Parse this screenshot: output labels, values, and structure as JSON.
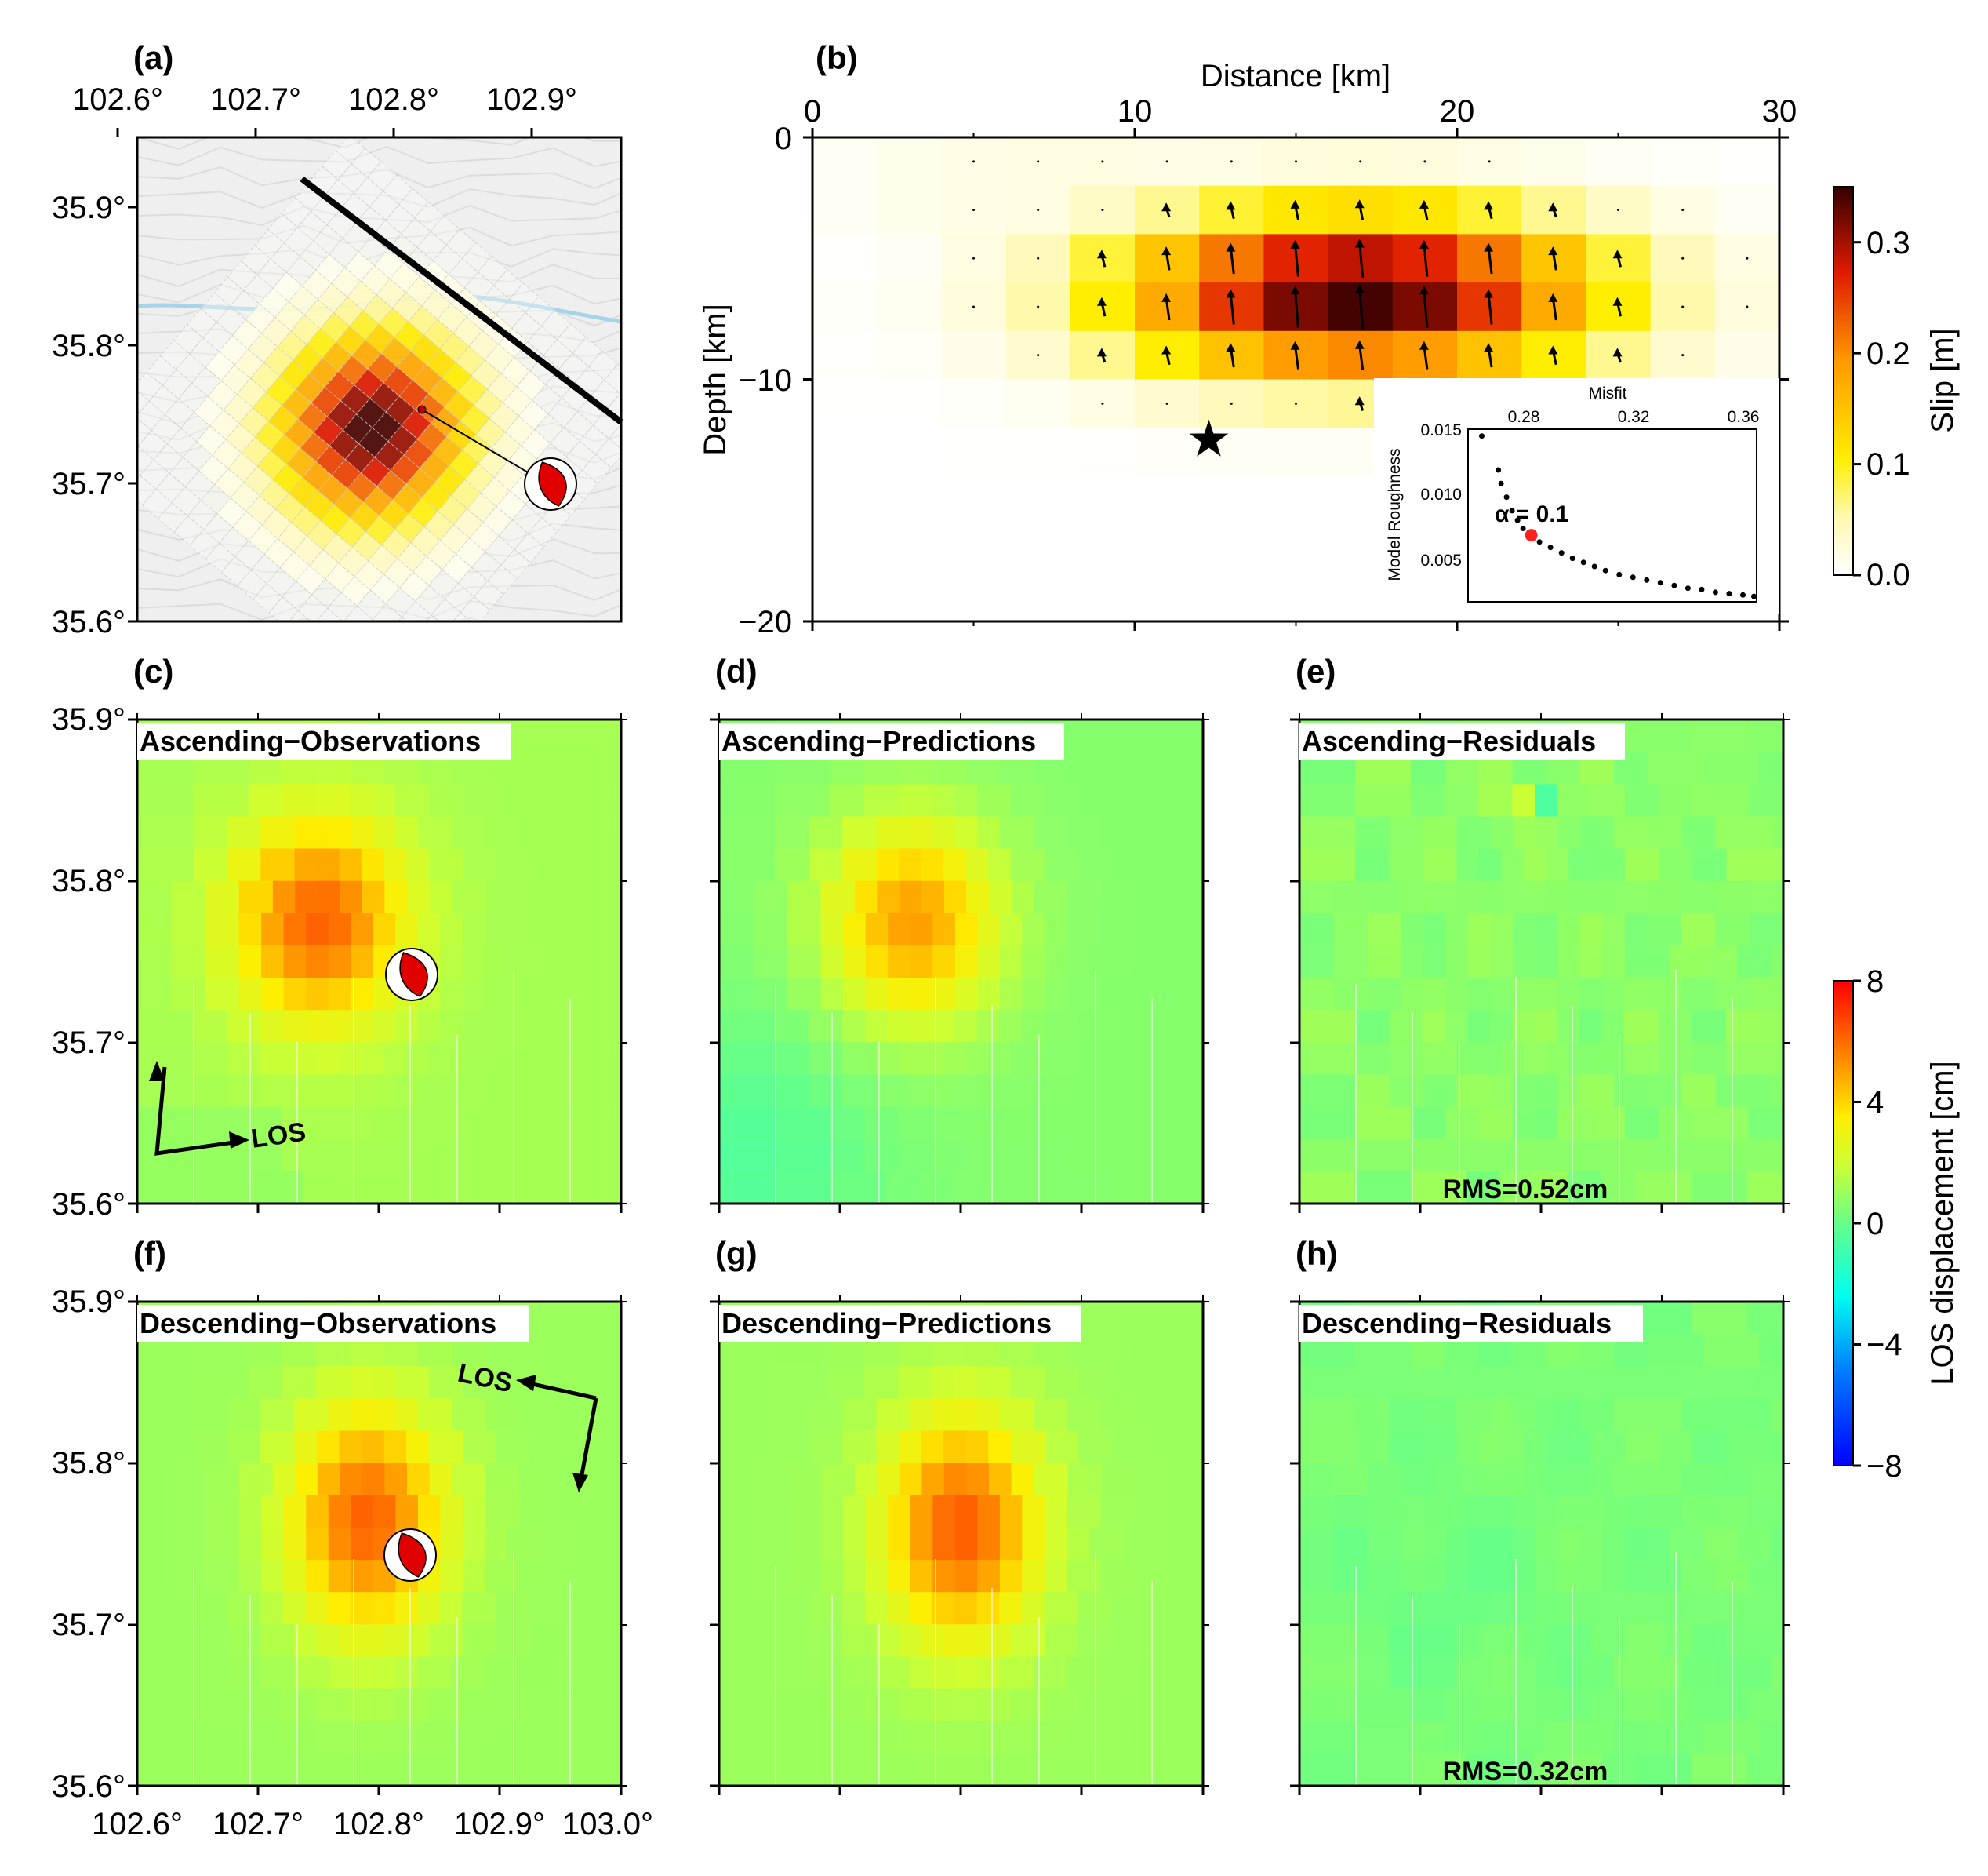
{
  "panel_labels": {
    "a": "(a)",
    "b": "(b)",
    "c": "(c)",
    "d": "(d)",
    "e": "(e)",
    "f": "(f)",
    "g": "(g)",
    "h": "(h)"
  },
  "map_axes": {
    "lon_ticks": [
      "102.6°",
      "102.7°",
      "102.8°",
      "102.9°"
    ],
    "lon_ticks_bottom": [
      "102.6°",
      "102.7°",
      "102.8°",
      "102.9°",
      "103.0°"
    ],
    "lat_ticks": [
      "35.9°",
      "35.8°",
      "35.7°",
      "35.6°"
    ]
  },
  "slip_panel": {
    "xlabel": "Distance [km]",
    "ylabel": "Depth [km]",
    "x_ticks": [
      "0",
      "10",
      "20",
      "30"
    ],
    "y_ticks": [
      "0",
      "−10",
      "−20"
    ]
  },
  "slip_colorbar": {
    "label": "Slip [m]",
    "ticks": [
      "0.3",
      "0.2",
      "0.1",
      "0.0"
    ],
    "max": 0.35
  },
  "inset": {
    "title": "Misfit",
    "x_ticks": [
      "0.28",
      "0.32",
      "0.36"
    ],
    "y_ticks": [
      "0.015",
      "0.010",
      "0.005"
    ],
    "ylabel": "Model Roughness",
    "annotation": "α = 0.1"
  },
  "los_colorbar": {
    "label": "LOS displacement [cm]",
    "ticks": [
      "8",
      "4",
      "0",
      "−4",
      "−8"
    ],
    "min": -8,
    "max": 8
  },
  "los_panels": {
    "c": {
      "title": "Ascending−Observations",
      "arrow_label": "LOS"
    },
    "d": {
      "title": "Ascending−Predictions"
    },
    "e": {
      "title": "Ascending−Residuals",
      "rms": "RMS=0.52cm"
    },
    "f": {
      "title": "Descending−Observations",
      "arrow_label": "LOS"
    },
    "g": {
      "title": "Descending−Predictions"
    },
    "h": {
      "title": "Descending−Residuals",
      "rms": "RMS=0.32cm"
    }
  },
  "chart_data": [
    {
      "panel": "a",
      "type": "heatmap",
      "description_kind": "map",
      "xlim": [
        102.6,
        102.95
      ],
      "ylim": [
        35.6,
        35.95
      ],
      "slip_peak_m": 0.35,
      "slip_peak_lonlat": [
        102.77,
        35.74
      ],
      "epicenter_lonlat": [
        102.82,
        35.75
      ],
      "focal_mechanism_lonlat": [
        102.9,
        35.7
      ],
      "fault_trace_lonlat": [
        [
          102.72,
          35.92
        ],
        [
          102.95,
          35.74
        ]
      ]
    },
    {
      "panel": "b",
      "type": "heatmap",
      "x_km": [
        0,
        30
      ],
      "depth_km": [
        0,
        -20
      ],
      "patch_km": 2,
      "peak_slip_m": 0.35,
      "peak_location_km": [
        17,
        -6.5
      ],
      "hypocenter_km": [
        12.3,
        -12.5
      ]
    },
    {
      "panel": "b-inset",
      "type": "line",
      "xlabel": "Misfit",
      "ylabel": "Model Roughness",
      "x": [
        0.265,
        0.271,
        0.272,
        0.274,
        0.276,
        0.278,
        0.28,
        0.283,
        0.286,
        0.29,
        0.294,
        0.298,
        0.302,
        0.306,
        0.31,
        0.315,
        0.32,
        0.325,
        0.33,
        0.335,
        0.34,
        0.345,
        0.35,
        0.355,
        0.36,
        0.364
      ],
      "y": [
        0.015,
        0.0125,
        0.0115,
        0.0105,
        0.0095,
        0.0088,
        0.0082,
        0.0077,
        0.0072,
        0.0068,
        0.0064,
        0.006,
        0.0057,
        0.0054,
        0.0051,
        0.0048,
        0.0046,
        0.0044,
        0.0042,
        0.004,
        0.0038,
        0.0037,
        0.0035,
        0.0034,
        0.0033,
        0.0032
      ],
      "selected": {
        "x": 0.283,
        "y": 0.0077
      },
      "xlim": [
        0.26,
        0.365
      ],
      "ylim": [
        0.0028,
        0.0155
      ]
    },
    {
      "panel": "c",
      "type": "heatmap",
      "xlim": [
        102.6,
        103.0
      ],
      "ylim": [
        35.6,
        35.9
      ],
      "peak_cm": 5.0,
      "peak_lonlat": [
        102.75,
        35.775
      ]
    },
    {
      "panel": "d",
      "type": "heatmap",
      "xlim": [
        102.6,
        103.0
      ],
      "ylim": [
        35.6,
        35.9
      ],
      "peak_cm": 4.5,
      "peak_lonlat": [
        102.76,
        35.775
      ]
    },
    {
      "panel": "e",
      "type": "heatmap",
      "xlim": [
        102.6,
        103.0
      ],
      "ylim": [
        35.6,
        35.9
      ],
      "rms_cm": 0.52
    },
    {
      "panel": "f",
      "type": "heatmap",
      "xlim": [
        102.6,
        103.0
      ],
      "ylim": [
        35.6,
        35.9
      ],
      "peak_cm": 5.2,
      "peak_lonlat": [
        102.79,
        35.765
      ]
    },
    {
      "panel": "g",
      "type": "heatmap",
      "xlim": [
        102.6,
        103.0
      ],
      "ylim": [
        35.6,
        35.9
      ],
      "peak_cm": 5.3,
      "peak_lonlat": [
        102.8,
        35.76
      ]
    },
    {
      "panel": "h",
      "type": "heatmap",
      "xlim": [
        102.6,
        103.0
      ],
      "ylim": [
        35.6,
        35.9
      ],
      "rms_cm": 0.32
    }
  ]
}
